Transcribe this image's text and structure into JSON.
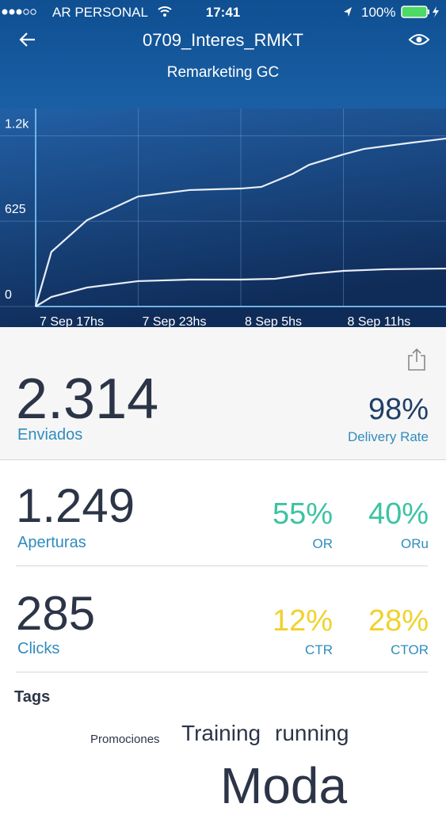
{
  "status_bar": {
    "carrier": "AR PERSONAL",
    "time": "17:41",
    "battery": "100%"
  },
  "header": {
    "title": "0709_Interes_RMKT",
    "subtitle": "Remarketing GC"
  },
  "chart_data": {
    "type": "line",
    "series": [
      {
        "color": "#e8eef7",
        "x": [
          0,
          0.92,
          3,
          6,
          9,
          12,
          13.2,
          15,
          16,
          18,
          19.2,
          22,
          24
        ],
        "values": [
          0,
          400,
          632,
          806,
          853,
          864,
          876,
          969,
          1038,
          1114,
          1154,
          1200,
          1230
        ]
      },
      {
        "color": "#e8eef7",
        "x": [
          0,
          0.92,
          3,
          6,
          9,
          12,
          14,
          16,
          18,
          20.5,
          24
        ],
        "values": [
          0,
          70,
          139,
          186,
          197,
          197,
          203,
          238,
          261,
          273,
          278
        ]
      }
    ],
    "xlim": [
      0,
      24
    ],
    "xticks": [
      {
        "value": 0,
        "label": "7 Sep 17hs"
      },
      {
        "value": 6,
        "label": "7 Sep 23hs"
      },
      {
        "value": 12,
        "label": "8 Sep 5hs"
      },
      {
        "value": 18,
        "label": "8 Sep 11hs"
      }
    ],
    "ylim": [
      0,
      1450
    ],
    "yticks": [
      0,
      625,
      {
        "value": 1250,
        "label": "1.2k"
      }
    ],
    "grid": true
  },
  "stats": {
    "sent": {
      "value": "2.314",
      "label": "Enviados",
      "rate": "98%",
      "rate_label": "Delivery Rate"
    },
    "opens": {
      "value": "1.249",
      "label": "Aperturas",
      "r1": "55%",
      "r1_label": "OR",
      "r2": "40%",
      "r2_label": "ORu"
    },
    "clicks": {
      "value": "285",
      "label": "Clicks",
      "r1": "12%",
      "r1_label": "CTR",
      "r2": "28%",
      "r2_label": "CTOR"
    }
  },
  "tags": {
    "title": "Tags",
    "items": [
      "Promociones",
      "Training",
      "running",
      "Moda"
    ]
  }
}
